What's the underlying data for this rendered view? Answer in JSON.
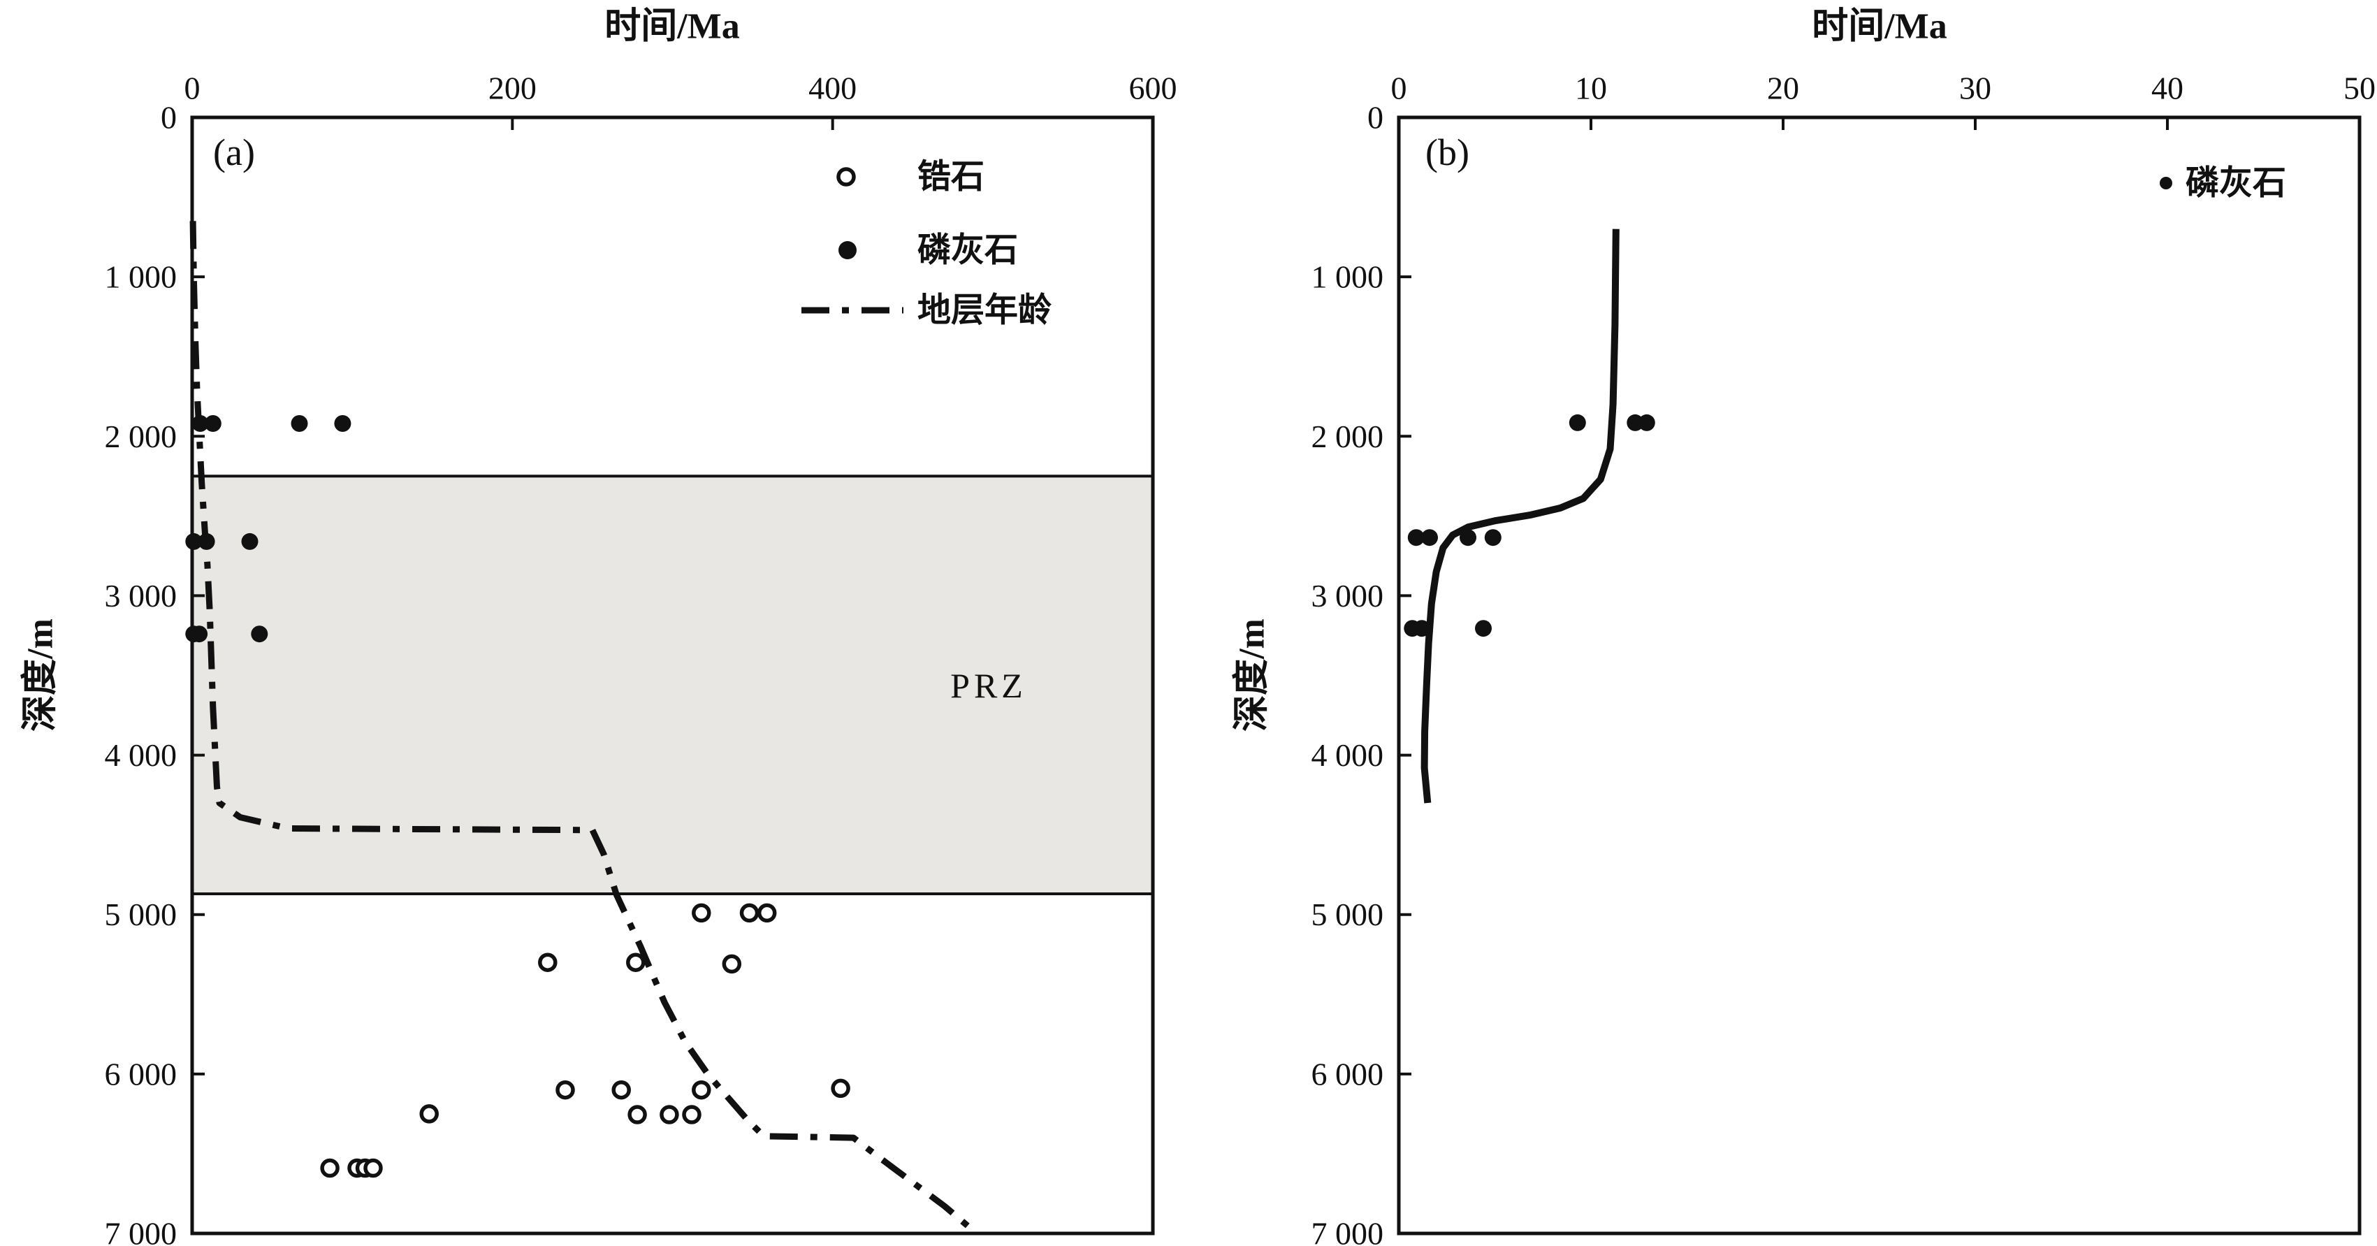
{
  "figure": {
    "background": "#ffffff",
    "ink": "#111111"
  },
  "panel_a": {
    "label": "(a)",
    "x_title": "时间/Ma",
    "y_title": "深度/m",
    "prz_label": "PRZ",
    "legend": {
      "zircon_label": "锆石",
      "apatite_label": "磷灰石",
      "strata_label": "地层年龄"
    }
  },
  "panel_b": {
    "label": "(b)",
    "x_title": "时间/Ma",
    "y_title": "深度/m",
    "legend": {
      "apatite_label": "磷灰石"
    }
  },
  "chart_data": [
    {
      "type": "scatter",
      "panel": "a",
      "xlabel": "时间/Ma",
      "ylabel": "深度/m",
      "xlim": [
        0,
        600
      ],
      "ylim": [
        0,
        7000
      ],
      "y_inverted": true,
      "grid": false,
      "x_ticks": [
        0,
        200,
        400,
        600
      ],
      "x_tick_labels": [
        "0",
        "200",
        "400",
        "600"
      ],
      "y_ticks": [
        0,
        1000,
        2000,
        3000,
        4000,
        5000,
        6000,
        7000
      ],
      "y_tick_labels": [
        "0",
        "1 000",
        "2 000",
        "3 000",
        "4 000",
        "5 000",
        "6 000",
        "7 000"
      ],
      "prz_zone": {
        "label": "PRZ",
        "depth_top": 2250,
        "depth_bottom": 4870,
        "fill": "#e8e7e3"
      },
      "legend_position": "upper-center-inside",
      "series": [
        {
          "name": "锆石",
          "marker": "open-circle",
          "points": [
            [
              318,
              4990
            ],
            [
              348,
              4990
            ],
            [
              359,
              4990
            ],
            [
              222,
              5300
            ],
            [
              277,
              5300
            ],
            [
              337,
              5310
            ],
            [
              233,
              6100
            ],
            [
              268,
              6100
            ],
            [
              318,
              6100
            ],
            [
              405,
              6090
            ],
            [
              148,
              6250
            ],
            [
              278,
              6255
            ],
            [
              298,
              6255
            ],
            [
              312,
              6255
            ],
            [
              86,
              6590
            ],
            [
              103,
              6590
            ],
            [
              108,
              6590
            ],
            [
              113,
              6590
            ]
          ]
        },
        {
          "name": "磷灰石",
          "marker": "filled-circle",
          "points": [
            [
              5,
              1920
            ],
            [
              13,
              1920
            ],
            [
              67,
              1920
            ],
            [
              94,
              1920
            ],
            [
              1,
              2660
            ],
            [
              9,
              2660
            ],
            [
              36,
              2660
            ],
            [
              1,
              3240
            ],
            [
              4.4,
              3240
            ],
            [
              42,
              3240
            ]
          ]
        },
        {
          "name": "地层年龄",
          "style": "dashdot-line",
          "points": [
            [
              0.5,
              650
            ],
            [
              1,
              1000
            ],
            [
              2,
              1400
            ],
            [
              3,
              1700
            ],
            [
              4.5,
              2000
            ],
            [
              6,
              2300
            ],
            [
              8,
              2600
            ],
            [
              9.5,
              2800
            ],
            [
              11,
              3100
            ],
            [
              12,
              3400
            ],
            [
              13,
              3700
            ],
            [
              14.5,
              4000
            ],
            [
              15.5,
              4200
            ],
            [
              17,
              4300
            ],
            [
              30,
              4390
            ],
            [
              60,
              4460
            ],
            [
              250,
              4470
            ],
            [
              257,
              4620
            ],
            [
              265,
              4875
            ],
            [
              280,
              5200
            ],
            [
              295,
              5550
            ],
            [
              308,
              5800
            ],
            [
              322,
              6000
            ],
            [
              334,
              6140
            ],
            [
              347,
              6290
            ],
            [
              357,
              6390
            ],
            [
              413,
              6400
            ],
            [
              430,
              6530
            ],
            [
              450,
              6680
            ],
            [
              470,
              6830
            ],
            [
              487,
              6975
            ]
          ]
        }
      ]
    },
    {
      "type": "scatter",
      "panel": "b",
      "xlabel": "时间/Ma",
      "ylabel": "深度/m",
      "xlim": [
        0,
        50
      ],
      "ylim": [
        0,
        7000
      ],
      "y_inverted": true,
      "grid": false,
      "x_ticks": [
        0,
        10,
        20,
        30,
        40,
        50
      ],
      "x_tick_labels": [
        "0",
        "10",
        "20",
        "30",
        "40",
        "50"
      ],
      "y_ticks": [
        0,
        1000,
        2000,
        3000,
        4000,
        5000,
        6000,
        7000
      ],
      "y_tick_labels": [
        "0",
        "1 000",
        "2 000",
        "3 000",
        "4 000",
        "5 000",
        "6 000",
        "7 000"
      ],
      "legend_position": "upper-right-inside",
      "series": [
        {
          "name": "磷灰石",
          "marker": "filled-circle",
          "points": [
            [
              9.3,
              1915
            ],
            [
              12.3,
              1915
            ],
            [
              12.9,
              1915
            ],
            [
              0.9,
              2635
            ],
            [
              1.6,
              2635
            ],
            [
              3.6,
              2635
            ],
            [
              4.9,
              2635
            ],
            [
              0.7,
              3205
            ],
            [
              1.2,
              3205
            ],
            [
              4.4,
              3205
            ]
          ]
        },
        {
          "name": "model-curve",
          "style": "solid-line",
          "points": [
            [
              11.3,
              700
            ],
            [
              11.25,
              1300
            ],
            [
              11.15,
              1800
            ],
            [
              11.0,
              2080
            ],
            [
              10.5,
              2270
            ],
            [
              9.6,
              2390
            ],
            [
              8.4,
              2450
            ],
            [
              6.8,
              2495
            ],
            [
              5.0,
              2530
            ],
            [
              3.6,
              2570
            ],
            [
              2.8,
              2620
            ],
            [
              2.3,
              2700
            ],
            [
              1.95,
              2850
            ],
            [
              1.7,
              3050
            ],
            [
              1.55,
              3300
            ],
            [
              1.45,
              3550
            ],
            [
              1.35,
              3850
            ],
            [
              1.33,
              4080
            ],
            [
              1.5,
              4300
            ]
          ]
        }
      ]
    }
  ]
}
